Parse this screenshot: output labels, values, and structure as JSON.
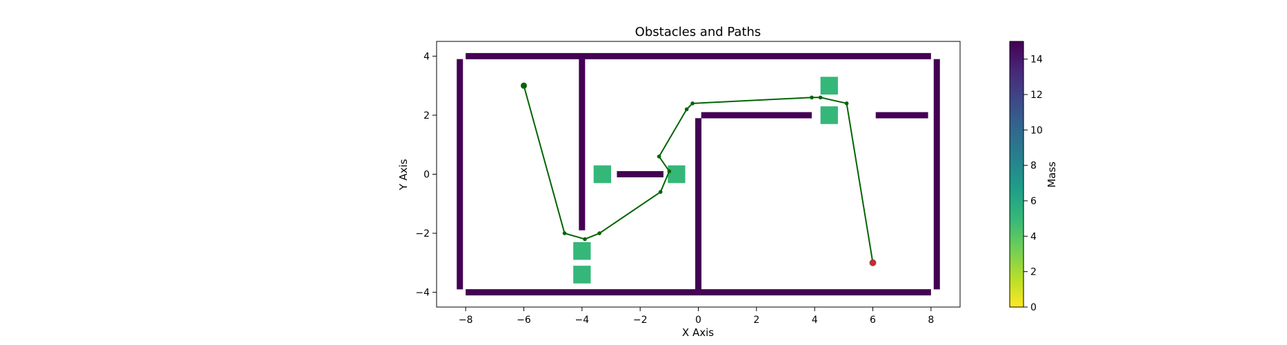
{
  "chart_data": {
    "type": "scatter",
    "title": "Obstacles and Paths",
    "xlabel": "X Axis",
    "ylabel": "Y Axis",
    "xlim": [
      -9.0,
      9.0
    ],
    "ylim": [
      -4.5,
      4.5
    ],
    "xticks": [
      -8,
      -6,
      -4,
      -2,
      0,
      2,
      4,
      6,
      8
    ],
    "xtick_labels": [
      "−8",
      "−6",
      "−4",
      "−2",
      "0",
      "2",
      "4",
      "6",
      "8"
    ],
    "yticks": [
      -4,
      -2,
      0,
      2,
      4
    ],
    "ytick_labels": [
      "−4",
      "−2",
      "0",
      "2",
      "4"
    ],
    "grid": false,
    "walls": [
      {
        "x0": -8.0,
        "y0": 4.0,
        "x1": 8.0,
        "y1": 4.0
      },
      {
        "x0": -8.0,
        "y0": -4.0,
        "x1": 8.0,
        "y1": -4.0
      },
      {
        "x0": -8.2,
        "y0": 3.9,
        "x1": -8.2,
        "y1": -3.9
      },
      {
        "x0": 8.2,
        "y0": 3.9,
        "x1": 8.2,
        "y1": -3.9
      },
      {
        "x0": -4.0,
        "y0": 3.9,
        "x1": -4.0,
        "y1": -1.9
      },
      {
        "x0": 0.0,
        "y0": 1.9,
        "x1": 0.0,
        "y1": -3.9
      },
      {
        "x0": 0.1,
        "y0": 2.0,
        "x1": 3.9,
        "y1": 2.0
      },
      {
        "x0": 6.1,
        "y0": 2.0,
        "x1": 7.9,
        "y1": 2.0
      },
      {
        "x0": -2.8,
        "y0": 0.0,
        "x1": -1.2,
        "y1": 0.0
      }
    ],
    "wall_mass": 15,
    "movable_obstacles": [
      {
        "x": -3.3,
        "y": 0.0,
        "w": 0.6,
        "h": 0.6
      },
      {
        "x": -0.75,
        "y": 0.0,
        "w": 0.6,
        "h": 0.6
      },
      {
        "x": -4.0,
        "y": -2.6,
        "w": 0.6,
        "h": 0.6
      },
      {
        "x": -4.0,
        "y": -3.4,
        "w": 0.6,
        "h": 0.6
      },
      {
        "x": 4.5,
        "y": 3.0,
        "w": 0.6,
        "h": 0.6
      },
      {
        "x": 4.5,
        "y": 2.0,
        "w": 0.6,
        "h": 0.6
      }
    ],
    "movable_mass": 5,
    "path": {
      "x": [
        -6.0,
        -4.6,
        -3.9,
        -3.4,
        -1.3,
        -1.0,
        -1.35,
        -0.4,
        -0.2,
        3.9,
        4.2,
        5.1,
        6.0
      ],
      "y": [
        3.0,
        -2.0,
        -2.2,
        -2.0,
        -0.6,
        0.1,
        0.6,
        2.2,
        2.4,
        2.6,
        2.6,
        2.4,
        -3.0
      ],
      "color": "#006400"
    },
    "start": {
      "x": -6.0,
      "y": 3.0,
      "color": "#006400"
    },
    "goal": {
      "x": 6.0,
      "y": -3.0,
      "color": "#d62728"
    },
    "colorbar": {
      "label": "Mass",
      "min": 0,
      "max": 15,
      "ticks": [
        0,
        2,
        4,
        6,
        8,
        10,
        12,
        14
      ],
      "tick_labels": [
        "0",
        "2",
        "4",
        "6",
        "8",
        "10",
        "12",
        "14"
      ],
      "colormap": "viridis_r",
      "stops": [
        "#fde725",
        "#b5de2b",
        "#6ece58",
        "#35b779",
        "#1f9e89",
        "#26828e",
        "#31688e",
        "#3e4989",
        "#482878",
        "#440154"
      ]
    }
  }
}
